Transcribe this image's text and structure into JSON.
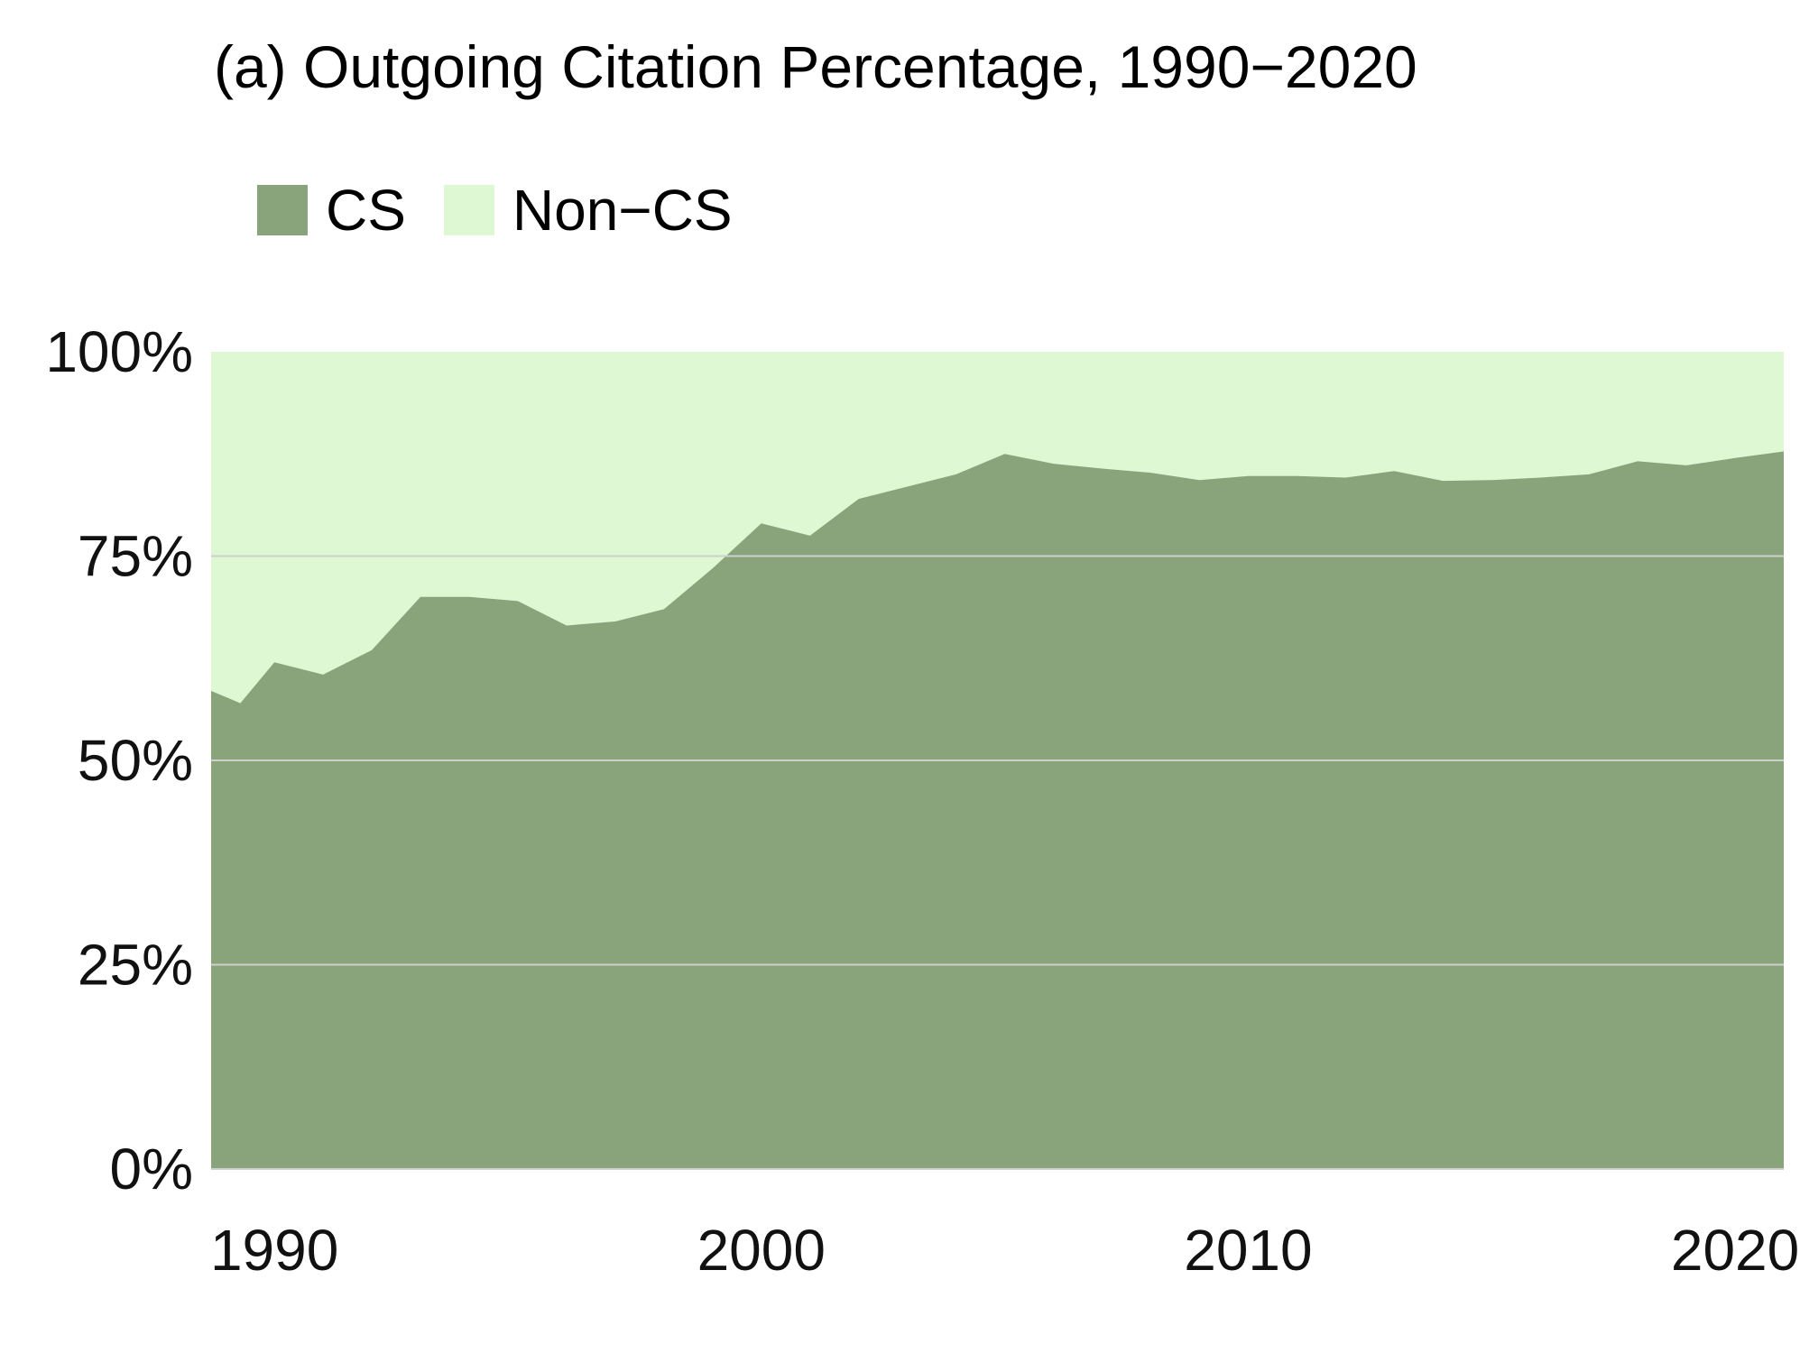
{
  "chart_data": {
    "type": "area",
    "stacked": true,
    "title": "(a) Outgoing Citation Percentage, 1990−2020",
    "xlabel": "",
    "ylabel": "",
    "xlim": [
      1988.7,
      2021
    ],
    "ylim": [
      0,
      100
    ],
    "grid": true,
    "legend_position": "top-left",
    "x": [
      1988.7,
      1989.3,
      1990,
      1991,
      1992,
      1993,
      1994,
      1995,
      1996,
      1997,
      1998,
      1999,
      2000,
      2001,
      2002,
      2003,
      2004,
      2005,
      2006,
      2007,
      2008,
      2009,
      2010,
      2011,
      2012,
      2013,
      2014,
      2015,
      2016,
      2017,
      2018,
      2019,
      2020,
      2021
    ],
    "series": [
      {
        "name": "CS",
        "color": "#89A37B",
        "values": [
          58.5,
          57,
          62,
          60.5,
          63.5,
          70,
          70,
          69.5,
          66.5,
          67,
          68.5,
          73.5,
          79,
          77.5,
          82,
          83.5,
          85,
          87.5,
          86.3,
          85.7,
          85.2,
          84.3,
          84.8,
          84.8,
          84.6,
          85.4,
          84.2,
          84.3,
          84.6,
          85,
          86.6,
          86.1,
          87,
          87.8
        ]
      },
      {
        "name": "Non−CS",
        "color": "#DDF8D2",
        "values": [
          41.5,
          43,
          38,
          39.5,
          36.5,
          30,
          30,
          30.5,
          33.5,
          33,
          31.5,
          26.5,
          21,
          22.5,
          18,
          16.5,
          15,
          12.5,
          13.7,
          14.3,
          14.8,
          15.7,
          15.2,
          15.2,
          15.4,
          14.6,
          15.8,
          15.7,
          15.4,
          15,
          13.4,
          13.9,
          13,
          12.2
        ]
      }
    ],
    "ygrid": [
      0,
      25,
      50,
      75
    ],
    "yticks": [
      {
        "value": 0,
        "label": "0%"
      },
      {
        "value": 25,
        "label": "25%"
      },
      {
        "value": 50,
        "label": "50%"
      },
      {
        "value": 75,
        "label": "75%"
      },
      {
        "value": 100,
        "label": "100%"
      }
    ],
    "xticks": [
      {
        "value": 1990,
        "label": "1990"
      },
      {
        "value": 2000,
        "label": "2000"
      },
      {
        "value": 2010,
        "label": "2010"
      },
      {
        "value": 2020,
        "label": "2020"
      }
    ],
    "colors": {
      "gridline": "#CFCFCF",
      "text": "#111111",
      "background": "#FFFFFF"
    }
  }
}
